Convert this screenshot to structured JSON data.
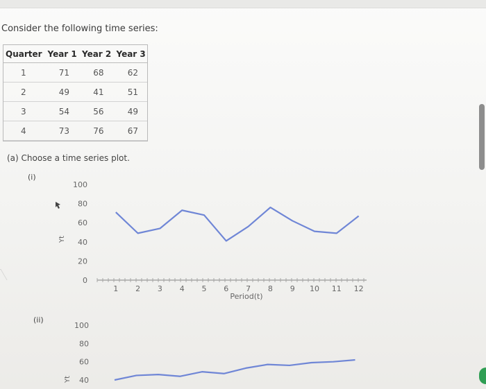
{
  "prompt": "Consider the following time series:",
  "table": {
    "headers": [
      "Quarter",
      "Year 1",
      "Year 2",
      "Year 3"
    ],
    "rows": [
      [
        "1",
        "71",
        "68",
        "62"
      ],
      [
        "2",
        "49",
        "41",
        "51"
      ],
      [
        "3",
        "54",
        "56",
        "49"
      ],
      [
        "4",
        "73",
        "76",
        "67"
      ]
    ]
  },
  "part_a": "(a) Choose a time series plot.",
  "options": [
    {
      "label": "(i)",
      "y_ticks": [
        "100",
        "80",
        "60",
        "40",
        "20",
        "0"
      ],
      "y_axis_label": "Yt",
      "x_ticks": [
        "1",
        "2",
        "3",
        "4",
        "5",
        "6",
        "7",
        "8",
        "9",
        "10",
        "11",
        "12"
      ],
      "x_axis_label": "Period(t)"
    },
    {
      "label": "(ii)",
      "y_ticks": [
        "100",
        "80",
        "60",
        "40"
      ],
      "y_axis_label": "Yt"
    }
  ],
  "chart_data": [
    {
      "type": "line",
      "title": "",
      "xlabel": "Period(t)",
      "ylabel": "Yt",
      "x": [
        1,
        2,
        3,
        4,
        5,
        6,
        7,
        8,
        9,
        10,
        11,
        12
      ],
      "series": [
        {
          "values": [
            71,
            49,
            54,
            73,
            68,
            41,
            56,
            76,
            62,
            51,
            49,
            67
          ]
        }
      ],
      "ylim": [
        0,
        100
      ],
      "xlim": [
        0,
        12
      ]
    },
    {
      "type": "line",
      "title": "",
      "ylabel": "Yt",
      "x": [
        1,
        2,
        3,
        4,
        5,
        6,
        7,
        8,
        9,
        10,
        11,
        12
      ],
      "series": [
        {
          "values": [
            40,
            45,
            46,
            44,
            49,
            47,
            53,
            57,
            56,
            59,
            60,
            62
          ]
        }
      ],
      "ylim": [
        0,
        100
      ]
    }
  ],
  "colors": {
    "line": "#6f86d6",
    "axis": "#9a9a9a",
    "tick_text": "#666666"
  }
}
